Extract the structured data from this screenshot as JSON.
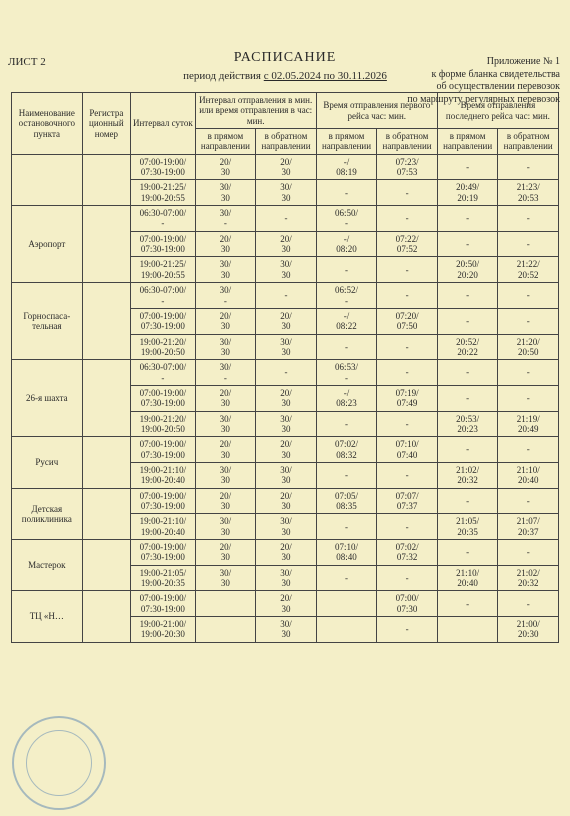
{
  "sheet_label": "ЛИСТ 2",
  "header_right": {
    "line1": "Приложение № 1",
    "line2": "к форме бланка свидетельства",
    "line3": "об осуществлении перевозок",
    "line4": "по маршруту регулярных перевозок"
  },
  "title": "РАСПИСАНИЕ",
  "period_prefix": "период действия ",
  "period_value": "с 02.05.2024 по 30.11.2026",
  "columns": {
    "stop": "Наименование остановочного пункта",
    "reg": "Регистра ционный номер",
    "interval": "Интервал суток",
    "depint": "Интервал отправления в мин. или время отправления в час: мин.",
    "first": "Время отправления первого рейса час: мин.",
    "last": "Время отправления последнего рейса час: мин.",
    "fwd": "в прямом направлении",
    "rev": "в обратном направлении"
  },
  "rows": [
    {
      "stop": "",
      "interval": "07:00-19:00/\n07:30-19:00",
      "di_f": "20/\n30",
      "di_r": "20/\n30",
      "fr_f": "-/\n08:19",
      "fr_r": "07:23/\n07:53",
      "lr_f": "-",
      "lr_r": "-"
    },
    {
      "stop": "",
      "interval": "19:00-21:25/\n19:00-20:55",
      "di_f": "30/\n30",
      "di_r": "30/\n30",
      "fr_f": "-",
      "fr_r": "-",
      "lr_f": "20:49/\n20:19",
      "lr_r": "21:23/\n20:53"
    },
    {
      "stop": "Аэропорт",
      "interval": "06:30-07:00/\n-",
      "di_f": "30/\n-",
      "di_r": "-",
      "fr_f": "06:50/\n-",
      "fr_r": "-",
      "lr_f": "-",
      "lr_r": "-"
    },
    {
      "stop": "",
      "interval": "07:00-19:00/\n07:30-19:00",
      "di_f": "20/\n30",
      "di_r": "20/\n30",
      "fr_f": "-/\n08:20",
      "fr_r": "07:22/\n07:52",
      "lr_f": "-",
      "lr_r": "-"
    },
    {
      "stop": "",
      "interval": "19:00-21:25/\n19:00-20:55",
      "di_f": "30/\n30",
      "di_r": "30/\n30",
      "fr_f": "-",
      "fr_r": "-",
      "lr_f": "20:50/\n20:20",
      "lr_r": "21:22/\n20:52"
    },
    {
      "stop": "Горноспаса-\nтельная",
      "interval": "06:30-07:00/\n-",
      "di_f": "30/\n-",
      "di_r": "-",
      "fr_f": "06:52/\n-",
      "fr_r": "-",
      "lr_f": "-",
      "lr_r": "-"
    },
    {
      "stop": "",
      "interval": "07:00-19:00/\n07:30-19:00",
      "di_f": "20/\n30",
      "di_r": "20/\n30",
      "fr_f": "-/\n08:22",
      "fr_r": "07:20/\n07:50",
      "lr_f": "-",
      "lr_r": "-"
    },
    {
      "stop": "",
      "interval": "19:00-21:20/\n19:00-20:50",
      "di_f": "30/\n30",
      "di_r": "30/\n30",
      "fr_f": "-",
      "fr_r": "-",
      "lr_f": "20:52/\n20:22",
      "lr_r": "21:20/\n20:50"
    },
    {
      "stop": "26-я шахта",
      "interval": "06:30-07:00/\n-",
      "di_f": "30/\n-",
      "di_r": "-",
      "fr_f": "06:53/\n-",
      "fr_r": "-",
      "lr_f": "-",
      "lr_r": "-"
    },
    {
      "stop": "",
      "interval": "07:00-19:00/\n07:30-19:00",
      "di_f": "20/\n30",
      "di_r": "20/\n30",
      "fr_f": "-/\n08:23",
      "fr_r": "07:19/\n07:49",
      "lr_f": "-",
      "lr_r": "-"
    },
    {
      "stop": "",
      "interval": "19:00-21:20/\n19:00-20:50",
      "di_f": "30/\n30",
      "di_r": "30/\n30",
      "fr_f": "-",
      "fr_r": "-",
      "lr_f": "20:53/\n20:23",
      "lr_r": "21:19/\n20:49"
    },
    {
      "stop": "Русич",
      "interval": "07:00-19:00/\n07:30-19:00",
      "di_f": "20/\n30",
      "di_r": "20/\n30",
      "fr_f": "07:02/\n08:32",
      "fr_r": "07:10/\n07:40",
      "lr_f": "-",
      "lr_r": "-"
    },
    {
      "stop": "",
      "interval": "19:00-21:10/\n19:00-20:40",
      "di_f": "30/\n30",
      "di_r": "30/\n30",
      "fr_f": "-",
      "fr_r": "-",
      "lr_f": "21:02/\n20:32",
      "lr_r": "21:10/\n20:40"
    },
    {
      "stop": "Детская\nполиклиника",
      "interval": "07:00-19:00/\n07:30-19:00",
      "di_f": "20/\n30",
      "di_r": "20/\n30",
      "fr_f": "07:05/\n08:35",
      "fr_r": "07:07/\n07:37",
      "lr_f": "-",
      "lr_r": "-"
    },
    {
      "stop": "",
      "interval": "19:00-21:10/\n19:00-20:40",
      "di_f": "30/\n30",
      "di_r": "30/\n30",
      "fr_f": "-",
      "fr_r": "-",
      "lr_f": "21:05/\n20:35",
      "lr_r": "21:07/\n20:37"
    },
    {
      "stop": "Мастерок",
      "interval": "07:00-19:00/\n07:30-19:00",
      "di_f": "20/\n30",
      "di_r": "20/\n30",
      "fr_f": "07:10/\n08:40",
      "fr_r": "07:02/\n07:32",
      "lr_f": "-",
      "lr_r": "-"
    },
    {
      "stop": "",
      "interval": "19:00-21:05/\n19:00-20:35",
      "di_f": "30/\n30",
      "di_r": "30/\n30",
      "fr_f": "-",
      "fr_r": "-",
      "lr_f": "21:10/\n20:40",
      "lr_r": "21:02/\n20:32"
    },
    {
      "stop": "ТЦ «Н…",
      "interval": "07:00-19:00/\n07:30-19:00",
      "di_f": "",
      "di_r": "20/\n30",
      "fr_f": "",
      "fr_r": "07:00/\n07:30",
      "lr_f": "-",
      "lr_r": "-"
    },
    {
      "stop": "",
      "interval": "19:00-21:00/\n19:00-20:30",
      "di_f": "",
      "di_r": "30/\n30",
      "fr_f": "",
      "fr_r": "-",
      "lr_f": "",
      "lr_r": "21:00/\n20:30"
    }
  ]
}
